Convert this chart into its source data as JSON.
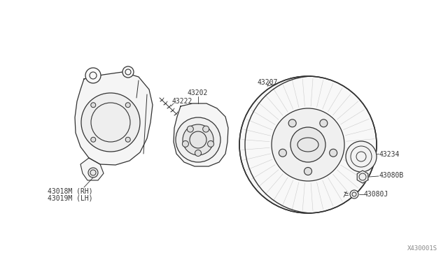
{
  "bg_color": "#ffffff",
  "line_color": "#333333",
  "text_color": "#333333",
  "fill_color": "#f0f0f0",
  "watermark": "X430001S",
  "labels": {
    "43018M_RH": "43018M (RH)",
    "43019M_LH": "43019M (LH)",
    "43202": "43202",
    "43222": "43222",
    "43207": "43207",
    "43234": "43234",
    "43080B": "43080B",
    "43080J": "43080J"
  },
  "font_size": 7.0
}
